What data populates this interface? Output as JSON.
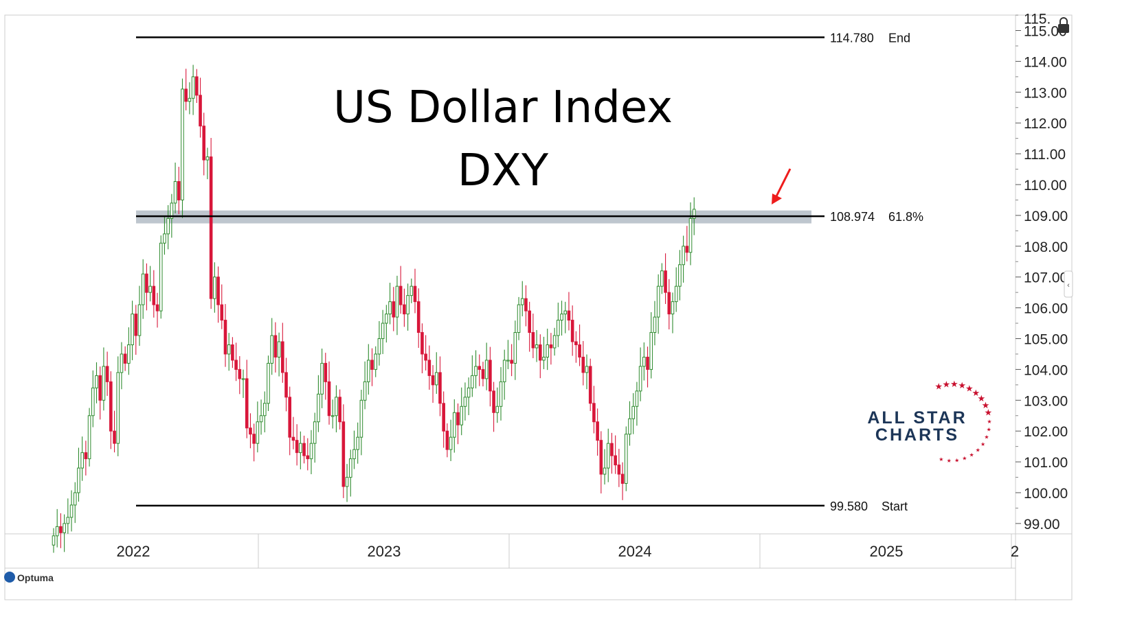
{
  "chart_data": {
    "type": "candlestick",
    "title": "US Dollar Index",
    "subtitle": "DXY",
    "ylim": [
      98.6,
      115.6
    ],
    "y_ticks": [
      "99.00",
      "100.00",
      "101.00",
      "102.00",
      "103.00",
      "104.00",
      "105.00",
      "106.00",
      "107.00",
      "108.00",
      "109.00",
      "110.00",
      "111.00",
      "112.00",
      "113.00",
      "114.00",
      "115.00"
    ],
    "y_top_partial_label": "115.",
    "x_labels": [
      "2022",
      "2023",
      "2024",
      "2025",
      "2"
    ],
    "levels": [
      {
        "value": 114.78,
        "value_label": "114.780",
        "tag": "End"
      },
      {
        "value": 108.974,
        "value_label": "108.974",
        "tag": "61.8%",
        "zone": [
          108.74,
          109.16
        ]
      },
      {
        "value": 99.58,
        "value_label": "99.580",
        "tag": "Start"
      }
    ],
    "up_color": "#2e8b2e",
    "down_color": "#d8173a",
    "zone_color": "#b3bcc6",
    "arrow_color": "#ee1c1c",
    "watermark": {
      "line1": "ALL STAR",
      "line2": "CHARTS",
      "star_color": "#c8102e",
      "text_color": "#1c3557"
    },
    "vendor": "Optuma",
    "weekly_closes": [
      98.6,
      98.9,
      98.7,
      99.0,
      99.2,
      99.6,
      100.0,
      100.8,
      101.3,
      101.1,
      102.5,
      103.4,
      103.8,
      103.0,
      104.1,
      103.6,
      102.0,
      101.6,
      103.9,
      104.5,
      104.2,
      104.8,
      105.8,
      105.1,
      106.1,
      107.1,
      106.5,
      106.7,
      106.1,
      105.9,
      108.1,
      108.4,
      108.9,
      109.4,
      110.1,
      109.5,
      113.1,
      112.7,
      112.8,
      113.5,
      112.9,
      111.9,
      110.8,
      110.9,
      106.3,
      107.0,
      106.1,
      105.6,
      104.5,
      104.8,
      104.3,
      104.0,
      103.7,
      103.7,
      102.1,
      101.9,
      101.6,
      102.3,
      102.5,
      102.9,
      104.2,
      105.1,
      104.4,
      104.9,
      103.9,
      103.1,
      101.8,
      101.7,
      101.3,
      101.6,
      101.2,
      101.1,
      101.6,
      102.3,
      103.2,
      104.2,
      103.6,
      102.5,
      102.5,
      103.1,
      102.3,
      100.2,
      100.5,
      101.1,
      101.4,
      101.8,
      103.0,
      103.6,
      104.3,
      104.0,
      104.5,
      105.0,
      105.5,
      105.8,
      106.2,
      105.7,
      106.7,
      106.1,
      105.8,
      106.4,
      106.7,
      106.2,
      105.2,
      104.5,
      104.3,
      103.8,
      103.5,
      103.9,
      102.9,
      102.0,
      101.4,
      101.8,
      102.6,
      102.2,
      102.8,
      103.1,
      103.4,
      103.8,
      104.1,
      104.0,
      103.7,
      104.3,
      103.3,
      102.6,
      102.8,
      103.6,
      104.3,
      104.3,
      104.2,
      105.2,
      106.1,
      106.3,
      105.9,
      105.2,
      104.7,
      104.8,
      104.3,
      104.4,
      104.8,
      104.7,
      105.1,
      105.6,
      105.8,
      105.9,
      105.6,
      104.9,
      104.8,
      104.4,
      103.9,
      104.1,
      102.9,
      102.3,
      101.7,
      100.6,
      100.8,
      101.6,
      101.2,
      100.9,
      100.6,
      100.3,
      101.9,
      102.4,
      102.8,
      103.3,
      104.1,
      104.4,
      104.0,
      105.2,
      105.7,
      106.7,
      107.2,
      106.5,
      105.8,
      106.2,
      106.7,
      107.4,
      108.0,
      107.8,
      108.9,
      109.2
    ]
  }
}
